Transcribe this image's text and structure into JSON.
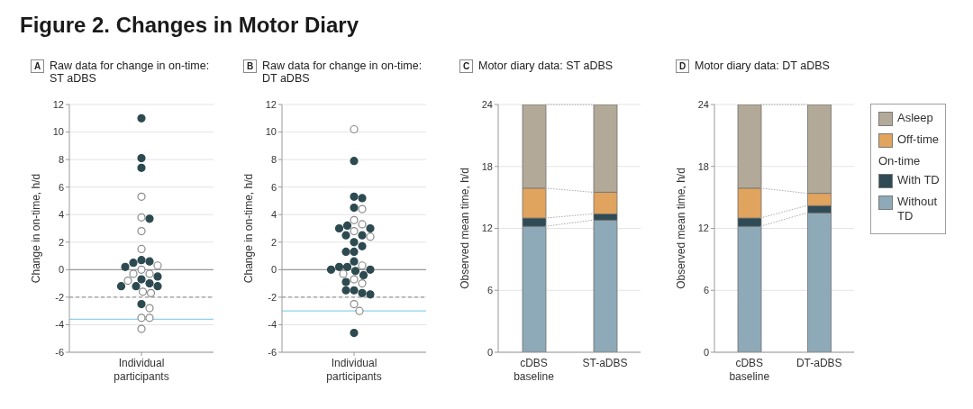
{
  "chart_data": [
    {
      "type": "other",
      "title": "Figure 2. Changes in Motor Diary"
    },
    {
      "type": "scatter",
      "title": "Raw data for change in on-time: ST aDBS",
      "annotations": [
        "A"
      ],
      "ylabel": "Change in on-time, h/d",
      "categories": [
        "Individual participants"
      ],
      "marker": "circle",
      "grid": "y",
      "ylim": [
        -6,
        12
      ],
      "yticks": [
        -6,
        -4,
        -2,
        0,
        2,
        4,
        6,
        8,
        10,
        12
      ],
      "series": [
        {
          "color": "#2d4a50",
          "values": [
            11,
            8.1,
            7.4,
            3.7,
            0.7,
            0.6,
            0.5,
            0.2,
            -0.5,
            -0.7,
            -1.0,
            -1.2,
            -1.2,
            -1.2,
            -2.5
          ],
          "x": [
            "Individual participants",
            "Individual participants",
            "Individual participants",
            "Individual participants",
            "Individual participants",
            "Individual participants",
            "Individual participants",
            "Individual participants",
            "Individual participants",
            "Individual participants",
            "Individual participants",
            "Individual participants",
            "Individual participants",
            "Individual participants",
            "Individual participants"
          ]
        },
        {
          "color": "#ffffff",
          "values": [
            5.3,
            3.8,
            2.8,
            1.5,
            0.3,
            0,
            -0.3,
            -0.3,
            -0.8,
            -1.6,
            -1.7,
            -2.8,
            -3.5,
            -3.5,
            -4.3
          ],
          "x": [
            "Individual participants",
            "Individual participants",
            "Individual participants",
            "Individual participants",
            "Individual participants",
            "Individual participants",
            "Individual participants",
            "Individual participants",
            "Individual participants",
            "Individual participants",
            "Individual participants",
            "Individual participants",
            "Individual participants",
            "Individual participants",
            "Individual participants"
          ]
        }
      ],
      "ref_lines": [
        {
          "axis": "y",
          "value": 0,
          "color": "#9b9b9b",
          "line_style": "solid"
        },
        {
          "axis": "y",
          "value": -2,
          "color": "#9b9b9b",
          "line_style": "dashed"
        },
        {
          "axis": "y",
          "value": -3.6,
          "color": "#8ed2ea",
          "line_style": "solid"
        }
      ]
    },
    {
      "type": "scatter",
      "title": "Raw data for change in on-time: DT aDBS",
      "annotations": [
        "B"
      ],
      "ylabel": "Change in on-time, h/d",
      "categories": [
        "Individual participants"
      ],
      "marker": "circle",
      "grid": "y",
      "ylim": [
        -6,
        12
      ],
      "yticks": [
        -6,
        -4,
        -2,
        0,
        2,
        4,
        6,
        8,
        10,
        12
      ],
      "series": [
        {
          "color": "#2d4a50",
          "values": [
            7.9,
            5.3,
            5.2,
            4.5,
            3.2,
            3.0,
            3.0,
            2.5,
            2.5,
            2.0,
            1.7,
            1.3,
            1.3,
            0.6,
            0.2,
            0.2,
            0,
            0,
            -0.1,
            -0.4,
            -0.9,
            -1.5,
            -1.5,
            -1.7,
            -1.8,
            -4.6
          ],
          "x": [
            "Individual participants",
            "Individual participants",
            "Individual participants",
            "Individual participants",
            "Individual participants",
            "Individual participants",
            "Individual participants",
            "Individual participants",
            "Individual participants",
            "Individual participants",
            "Individual participants",
            "Individual participants",
            "Individual participants",
            "Individual participants",
            "Individual participants",
            "Individual participants",
            "Individual participants",
            "Individual participants",
            "Individual participants",
            "Individual participants",
            "Individual participants",
            "Individual participants",
            "Individual participants",
            "Individual participants",
            "Individual participants",
            "Individual participants"
          ]
        },
        {
          "color": "#ffffff",
          "values": [
            10.2,
            4.4,
            3.6,
            3.3,
            2.8,
            2.4,
            0.3,
            -0.3,
            -0.7,
            -1.0,
            -2.5,
            -3.0
          ],
          "x": [
            "Individual participants",
            "Individual participants",
            "Individual participants",
            "Individual participants",
            "Individual participants",
            "Individual participants",
            "Individual participants",
            "Individual participants",
            "Individual participants",
            "Individual participants",
            "Individual participants",
            "Individual participants"
          ]
        }
      ],
      "ref_lines": [
        {
          "axis": "y",
          "value": 0,
          "color": "#9b9b9b",
          "line_style": "solid"
        },
        {
          "axis": "y",
          "value": -2,
          "color": "#9b9b9b",
          "line_style": "dashed"
        },
        {
          "axis": "y",
          "value": -3,
          "color": "#8ed2ea",
          "line_style": "solid"
        }
      ]
    },
    {
      "type": "bar",
      "title": "Motor diary data: ST aDBS",
      "annotations": [
        "C"
      ],
      "ylabel": "Observed mean time, h/d",
      "categories": [
        "cDBS baseline",
        "ST-aDBS"
      ],
      "stacked": true,
      "grid": "y",
      "ylim": [
        0,
        24
      ],
      "yticks": [
        0,
        6,
        12,
        18,
        24
      ],
      "series": [
        {
          "color": "#8ea9b8",
          "values": [
            12.2,
            12.8
          ]
        },
        {
          "color": "#2f4b55",
          "values": [
            0.8,
            0.6
          ]
        },
        {
          "color": "#e0a45e",
          "values": [
            2.9,
            2.1
          ]
        },
        {
          "color": "#b3a998",
          "values": [
            8.1,
            8.5
          ]
        }
      ]
    },
    {
      "type": "bar",
      "title": "Motor diary data: DT aDBS",
      "annotations": [
        "D"
      ],
      "ylabel": "Observed mean time, h/d",
      "categories": [
        "cDBS baseline",
        "DT-aDBS"
      ],
      "stacked": true,
      "grid": "y",
      "ylim": [
        0,
        24
      ],
      "yticks": [
        0,
        6,
        12,
        18,
        24
      ],
      "legend": "right",
      "legend_title": "On-time",
      "series": [
        {
          "name": "Without TD",
          "color": "#8ea9b8",
          "values": [
            12.2,
            13.5
          ]
        },
        {
          "name": "With TD",
          "color": "#2f4b55",
          "values": [
            0.8,
            0.7
          ]
        },
        {
          "name": "Off-time",
          "color": "#e0a45e",
          "values": [
            2.9,
            1.2
          ]
        },
        {
          "name": "Asleep",
          "color": "#b3a998",
          "values": [
            8.1,
            8.6
          ]
        }
      ]
    }
  ]
}
